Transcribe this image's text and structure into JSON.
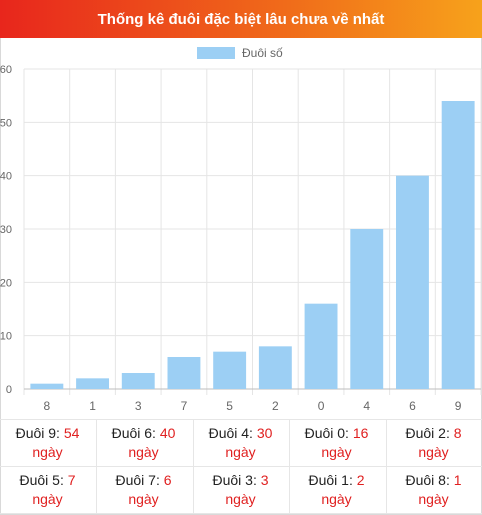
{
  "title": "Thống kê đuôi đặc biệt lâu chưa về nhất",
  "colors": {
    "bar": "#9ccff4",
    "header_start": "#e8261c",
    "header_end": "#f7a21b",
    "value": "#e02020"
  },
  "chart_data": {
    "type": "bar",
    "categories": [
      "8",
      "1",
      "3",
      "7",
      "5",
      "2",
      "0",
      "4",
      "6",
      "9"
    ],
    "series": [
      {
        "name": "Đuôi số",
        "values": [
          1,
          2,
          3,
          6,
          7,
          8,
          16,
          30,
          40,
          54
        ]
      }
    ],
    "ylim": [
      0,
      60
    ],
    "yticks": [
      0,
      10,
      20,
      30,
      40,
      50,
      60
    ],
    "grid": true,
    "legend": "top-center"
  },
  "stats": [
    {
      "label": "Đuôi 9:",
      "value": "54",
      "unit": "ngày"
    },
    {
      "label": "Đuôi 6:",
      "value": "40",
      "unit": "ngày"
    },
    {
      "label": "Đuôi 4:",
      "value": "30",
      "unit": "ngày"
    },
    {
      "label": "Đuôi 0:",
      "value": "16",
      "unit": "ngày"
    },
    {
      "label": "Đuôi 2:",
      "value": "8",
      "unit": "ngày"
    },
    {
      "label": "Đuôi 5:",
      "value": "7",
      "unit": "ngày"
    },
    {
      "label": "Đuôi 7:",
      "value": "6",
      "unit": "ngày"
    },
    {
      "label": "Đuôi 3:",
      "value": "3",
      "unit": "ngày"
    },
    {
      "label": "Đuôi 1:",
      "value": "2",
      "unit": "ngày"
    },
    {
      "label": "Đuôi 8:",
      "value": "1",
      "unit": "ngày"
    }
  ]
}
